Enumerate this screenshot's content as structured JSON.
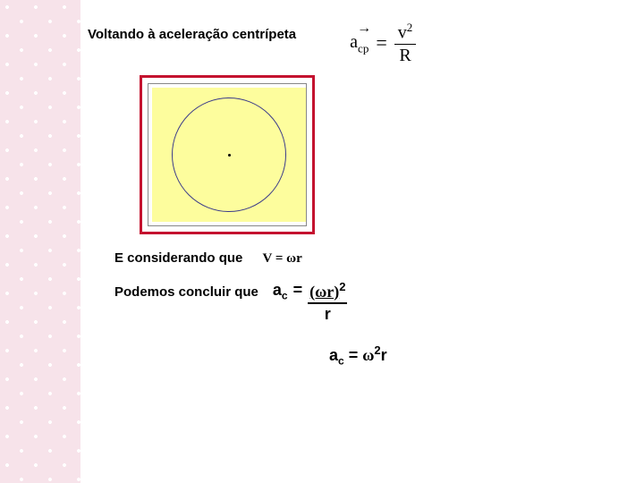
{
  "title": "Voltando à aceleração centrípeta",
  "formula_acp": {
    "lhs_arrow": "→",
    "lhs_base": "a",
    "lhs_sub": "cp",
    "eq": "=",
    "num_base": "v",
    "num_sup": "2",
    "den": "R"
  },
  "figure": {
    "border_color": "#c4122f",
    "fill_color": "#fdfd9d",
    "circle_border": "#3a3a8a"
  },
  "line_considering": {
    "text": "E considerando que",
    "formula": "V = ωr"
  },
  "line_conclude": {
    "text": "Podemos concluir que",
    "ac_base": "a",
    "ac_sub": "c",
    "eq": "=",
    "num": "(ωr)",
    "num_sup": "2",
    "den": "r"
  },
  "line_result": {
    "ac_base": "a",
    "ac_sub": "c",
    "eq": "=",
    "omega": "ω",
    "sup": "2",
    "r": "r"
  }
}
